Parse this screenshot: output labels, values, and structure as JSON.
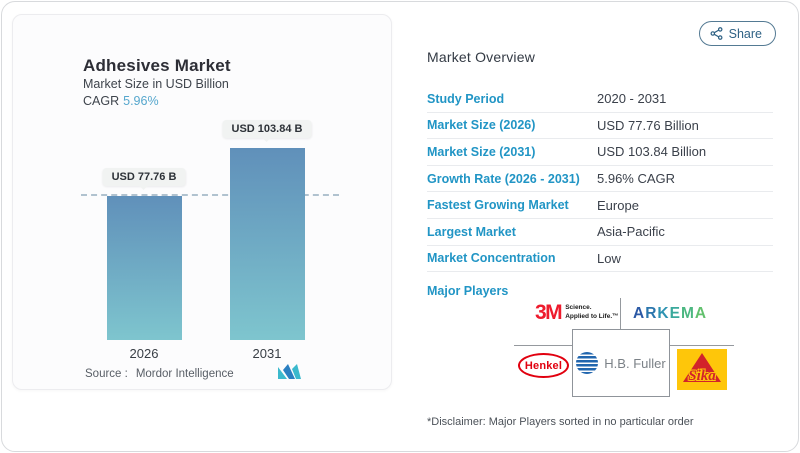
{
  "page": {
    "share_button": {
      "label": "Share"
    }
  },
  "chart_card": {
    "title": "Adhesives Market",
    "subtitle": "Market Size in USD Billion",
    "cagr_label": "CAGR",
    "cagr_value": "5.96%",
    "source_label": "Source :",
    "source_value": "Mordor Intelligence"
  },
  "chart_data": {
    "type": "bar",
    "title": "Adhesives Market",
    "ylabel": "Market Size in USD Billion",
    "categories": [
      "2026",
      "2031"
    ],
    "values": [
      77.76,
      103.84
    ],
    "value_labels": [
      "USD 77.76 B",
      "USD 103.84 B"
    ],
    "cagr_percent": "5.96%",
    "reference_line_value": 77.76,
    "ylim": [
      0,
      103.84
    ],
    "grid": false,
    "legend": false
  },
  "overview": {
    "title": "Market Overview",
    "rows": [
      {
        "label": "Study Period",
        "value": "2020 - 2031"
      },
      {
        "label": "Market Size (2026)",
        "value": "USD 77.76 Billion"
      },
      {
        "label": "Market Size (2031)",
        "value": "USD 103.84 Billion"
      },
      {
        "label": "Growth Rate (2026 - 2031)",
        "value": "5.96% CAGR"
      },
      {
        "label": "Fastest Growing Market",
        "value": "Europe"
      },
      {
        "label": "Largest Market",
        "value": "Asia-Pacific"
      },
      {
        "label": "Market Concentration",
        "value": "Low"
      }
    ],
    "major_players_label": "Major Players",
    "disclaimer": "*Disclaimer: Major Players sorted in no particular order"
  },
  "players": {
    "m3": {
      "name": "3M",
      "logo_text": "3M",
      "tagline1": "Science.",
      "tagline2": "Applied to Life.™"
    },
    "arkema": {
      "name": "Arkema",
      "letters": [
        {
          "ch": "A",
          "color": "#2b59a5"
        },
        {
          "ch": "R",
          "color": "#2b76ad"
        },
        {
          "ch": "K",
          "color": "#2e93b2"
        },
        {
          "ch": "E",
          "color": "#3aa99c"
        },
        {
          "ch": "M",
          "color": "#4cb781"
        },
        {
          "ch": "A",
          "color": "#63c16e"
        }
      ]
    },
    "henkel": {
      "name": "Henkel",
      "logo_text": "Henkel"
    },
    "hbfuller": {
      "name": "H.B. Fuller",
      "logo_text": "H.B. Fuller"
    },
    "sika": {
      "name": "Sika",
      "logo_text": "Sika"
    }
  },
  "colors": {
    "accent_blue": "#2195c5",
    "cagr_blue": "#56a7cd",
    "bar_top": "#6090ba",
    "bar_bottom": "#7ec5ce",
    "dashed_line": "#b0c2cf",
    "share_color": "#2f6285",
    "m3_red": "#ee1b2d",
    "henkel_red": "#e1000f",
    "sika_yellow": "#fec60a",
    "sika_red": "#d2232a",
    "hbfuller_blue": "#2166ae",
    "mordor_teal": "#3bb9cd",
    "mordor_blue": "#2a7fc1"
  }
}
